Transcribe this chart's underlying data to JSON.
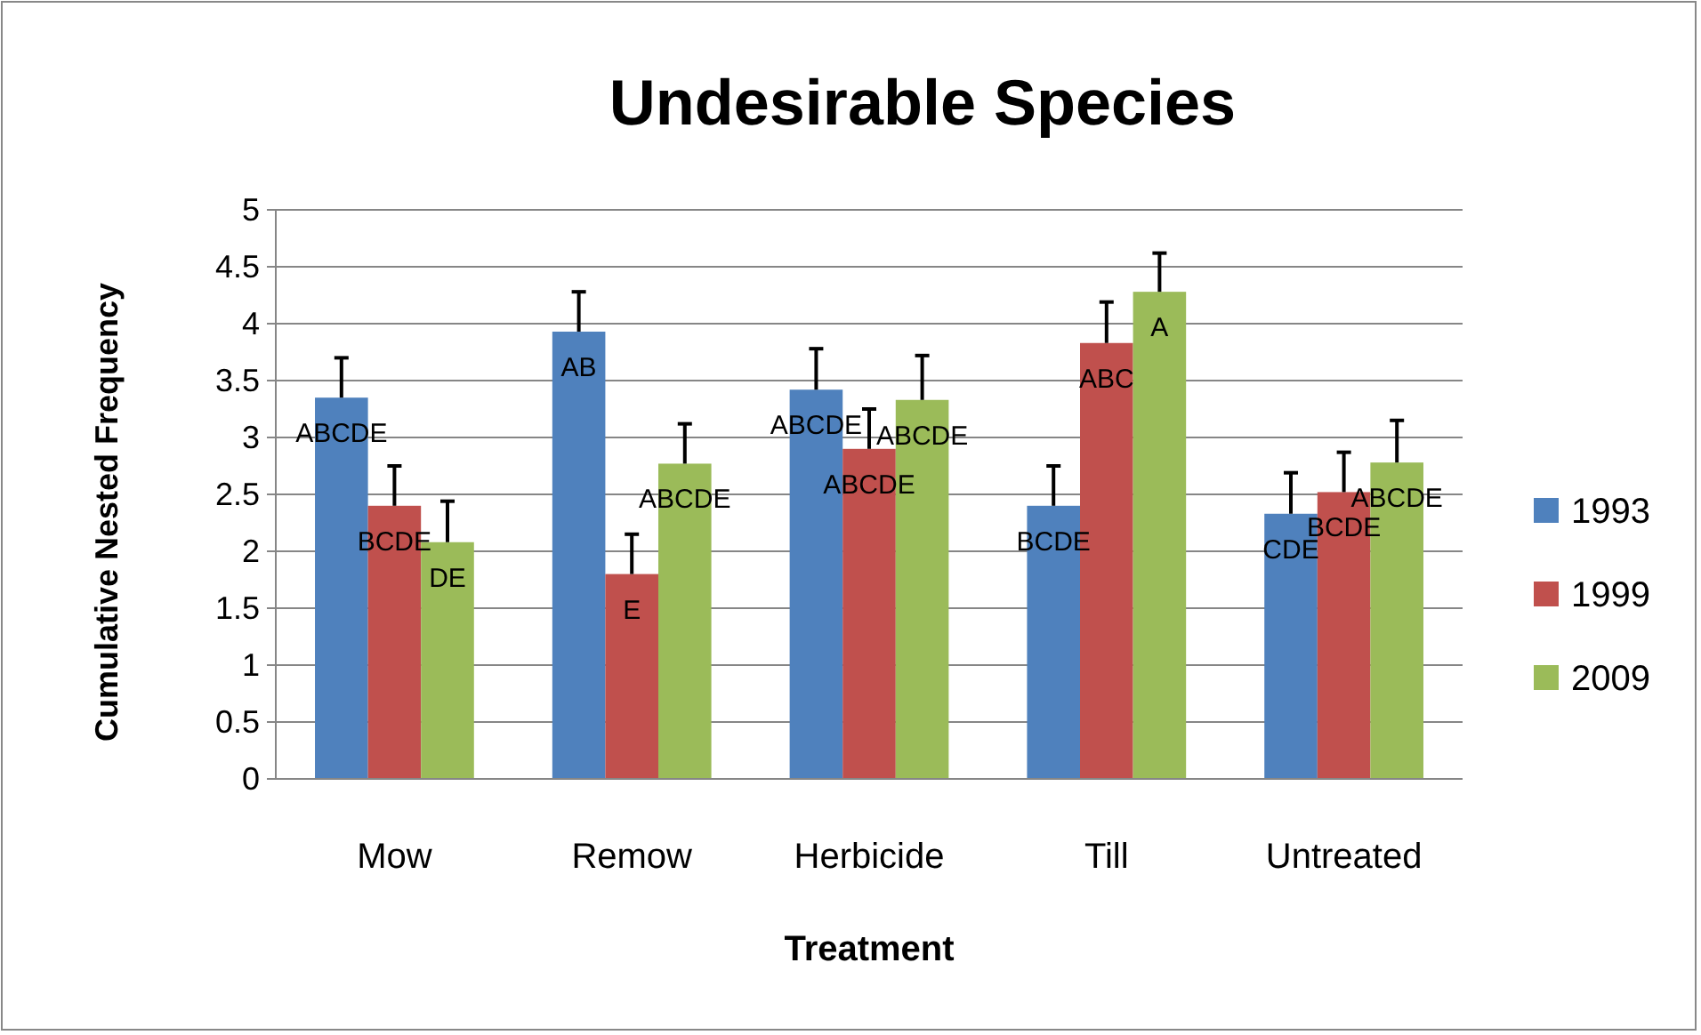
{
  "chart_data": {
    "type": "bar",
    "title": "Undesirable Species",
    "xlabel": "Treatment",
    "ylabel": "Cumulative Nested Frequency",
    "categories": [
      "Mow",
      "Remow",
      "Herbicide",
      "Till",
      "Untreated"
    ],
    "series": [
      {
        "name": "1993",
        "color": "#4f81bd",
        "values": [
          3.35,
          3.93,
          3.42,
          2.4,
          2.33
        ],
        "errors": [
          0.35,
          0.35,
          0.36,
          0.35,
          0.36
        ],
        "value_labels": [
          "ABCDE",
          "AB",
          "ABCDE",
          "BCDE",
          "CDE"
        ]
      },
      {
        "name": "1999",
        "color": "#c0504d",
        "values": [
          2.4,
          1.8,
          2.9,
          3.83,
          2.52
        ],
        "errors": [
          0.35,
          0.35,
          0.35,
          0.36,
          0.35
        ],
        "value_labels": [
          "BCDE",
          "E",
          "ABCDE",
          "ABC",
          "BCDE"
        ]
      },
      {
        "name": "2009",
        "color": "#9bbb59",
        "values": [
          2.08,
          2.77,
          3.33,
          4.28,
          2.78
        ],
        "errors": [
          0.36,
          0.35,
          0.39,
          0.34,
          0.37
        ],
        "value_labels": [
          "DE",
          "ABCDE",
          "ABCDE",
          "A",
          "ABCDE"
        ]
      }
    ],
    "ylim": [
      0,
      5
    ],
    "yticks": [
      0,
      0.5,
      1,
      1.5,
      2,
      2.5,
      3,
      3.5,
      4,
      4.5,
      5
    ],
    "grid": "y",
    "legend": "right"
  }
}
